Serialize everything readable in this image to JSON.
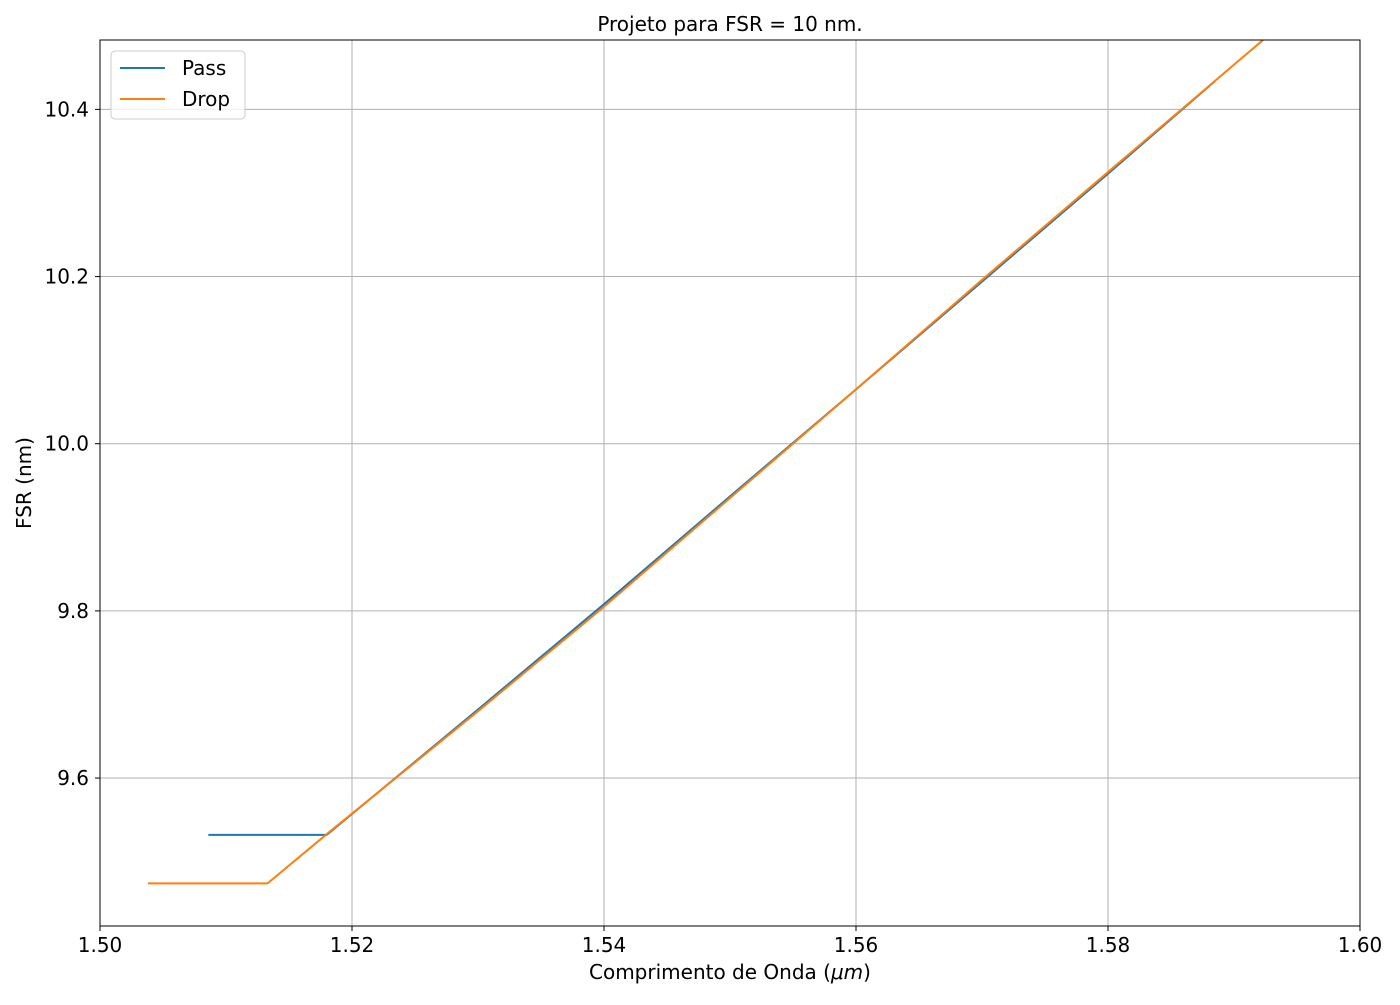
{
  "chart_data": {
    "type": "line",
    "title": "Projeto para FSR = 10 nm.",
    "xlabel_prefix": "Comprimento de Onda (",
    "xlabel_unit": "μm",
    "xlabel_suffix": ")",
    "ylabel": "FSR (nm)",
    "xlim": [
      1.5,
      1.6
    ],
    "ylim": [
      9.423,
      10.483
    ],
    "grid": true,
    "legend_position": "top-left",
    "x_ticks": [
      1.5,
      1.52,
      1.54,
      1.56,
      1.58,
      1.6
    ],
    "x_tick_labels": [
      "1.50",
      "1.52",
      "1.54",
      "1.56",
      "1.58",
      "1.60"
    ],
    "y_ticks": [
      9.6,
      9.8,
      10.0,
      10.2,
      10.4
    ],
    "y_tick_labels": [
      "9.6",
      "9.8",
      "10.0",
      "10.2",
      "10.4"
    ],
    "series": [
      {
        "name": "Pass",
        "color": "#1f77b4",
        "x": [
          1.5086,
          1.518,
          1.53,
          1.54,
          1.55,
          1.56,
          1.57,
          1.58,
          1.5885
        ],
        "y": [
          9.532,
          9.532,
          9.682,
          9.808,
          9.937,
          10.065,
          10.194,
          10.323,
          10.434
        ]
      },
      {
        "name": "Drop",
        "color": "#ff7f0e",
        "x": [
          1.5038,
          1.5133,
          1.518,
          1.53,
          1.54,
          1.55,
          1.56,
          1.57,
          1.58,
          1.5923
        ],
        "y": [
          9.474,
          9.474,
          9.533,
          9.68,
          9.805,
          9.935,
          10.065,
          10.196,
          10.325,
          10.483
        ]
      }
    ]
  }
}
